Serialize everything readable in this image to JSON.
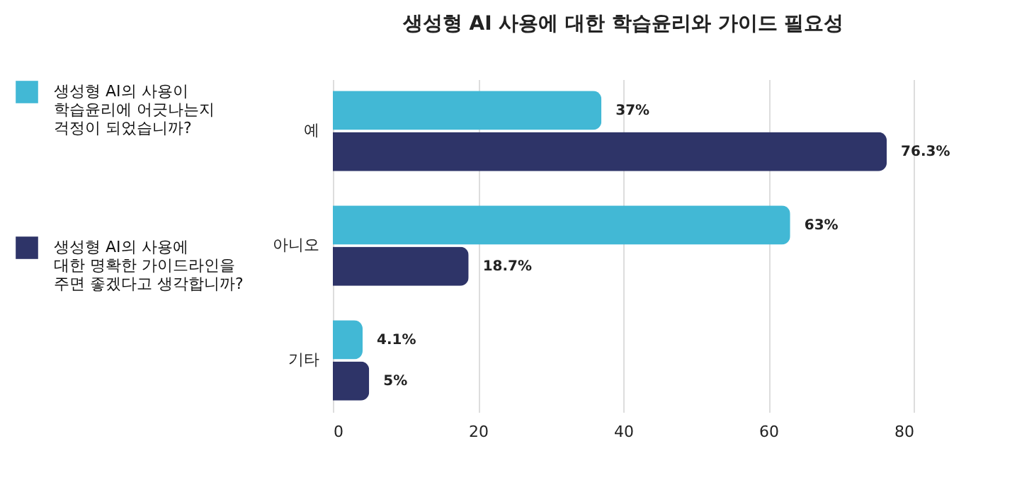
{
  "chart_data": {
    "type": "bar",
    "orientation": "horizontal",
    "title": "생성형 AI 사용에 대한 학습윤리와 가이드 필요성",
    "categories": [
      "예",
      "아니오",
      "기타"
    ],
    "series": [
      {
        "name": "생성형 AI의 사용이\n학습윤리에 어긋나는지\n걱정이 되었습니까?",
        "color": "#42b8d5",
        "values": [
          37,
          63,
          4.1
        ],
        "value_labels": [
          "37%",
          "63%",
          "4.1%"
        ]
      },
      {
        "name": "생성형 AI의 사용에\n대한 명확한 가이드라인을\n주면 좋겠다고 생각합니까?",
        "color": "#2e3468",
        "values": [
          76.3,
          18.7,
          5
        ],
        "value_labels": [
          "76.3%",
          "18.7%",
          "5%"
        ]
      }
    ],
    "xlim": [
      0,
      80
    ],
    "xticks": [
      0,
      20,
      40,
      60,
      80
    ],
    "grid": "x",
    "legend": "left"
  }
}
